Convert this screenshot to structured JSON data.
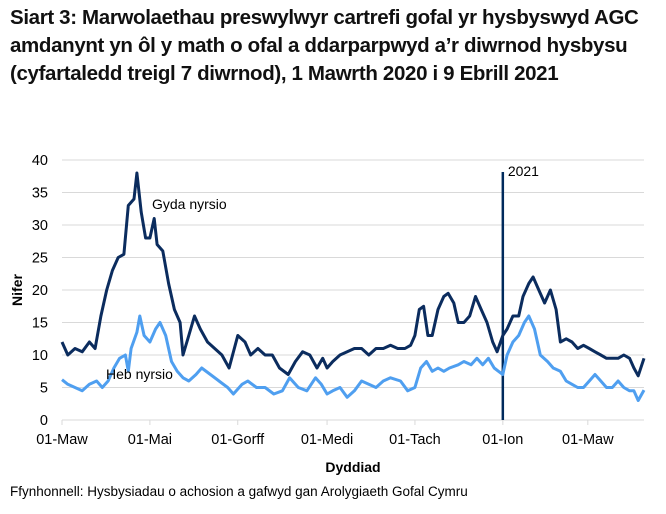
{
  "chart_data": {
    "type": "line",
    "title": "Siart 3: Marwolaethau preswylwyr cartrefi gofal yr hysbyswyd AGC amdanynt yn ôl y math o ofal a ddarparpwyd a’r diwrnod hysbysu (cyfartaledd treigl 7 diwrnod), 1 Mawrth 2020 i 9 Ebrill 2021",
    "xlabel": "Dyddiad",
    "ylabel": "Nifer",
    "ylim": [
      0,
      40
    ],
    "yticks": [
      0,
      5,
      10,
      15,
      20,
      25,
      30,
      35,
      40
    ],
    "xlim": [
      "2020-03-01",
      "2021-04-09"
    ],
    "xticks": [
      {
        "date": "2020-03-01",
        "label": "01-Maw"
      },
      {
        "date": "2020-05-01",
        "label": "01-Mai"
      },
      {
        "date": "2020-07-01",
        "label": "01-Gorff"
      },
      {
        "date": "2020-09-01",
        "label": "01-Medi"
      },
      {
        "date": "2020-11-01",
        "label": "01-Tach"
      },
      {
        "date": "2021-01-01",
        "label": "01-Ion"
      },
      {
        "date": "2021-03-01",
        "label": "01-Maw"
      }
    ],
    "grid": true,
    "annotations": [
      {
        "type": "vline",
        "date": "2021-01-01",
        "label": "2021",
        "color": "#002a5c"
      }
    ],
    "source": "Ffynhonnell: Hysbysiadau o achosion a gafwyd gan Arolygiaeth Gofal Cymru",
    "series": [
      {
        "name": "Gyda nyrsio",
        "color": "#0b2c5e",
        "points": [
          [
            "2020-03-01",
            12
          ],
          [
            "2020-03-05",
            10
          ],
          [
            "2020-03-10",
            11
          ],
          [
            "2020-03-15",
            10.5
          ],
          [
            "2020-03-20",
            12
          ],
          [
            "2020-03-24",
            11
          ],
          [
            "2020-03-28",
            16
          ],
          [
            "2020-04-01",
            20
          ],
          [
            "2020-04-05",
            23
          ],
          [
            "2020-04-09",
            25
          ],
          [
            "2020-04-13",
            25.5
          ],
          [
            "2020-04-16",
            33
          ],
          [
            "2020-04-20",
            34
          ],
          [
            "2020-04-22",
            38
          ],
          [
            "2020-04-25",
            32
          ],
          [
            "2020-04-28",
            28
          ],
          [
            "2020-05-01",
            28
          ],
          [
            "2020-05-04",
            31
          ],
          [
            "2020-05-06",
            27
          ],
          [
            "2020-05-10",
            26
          ],
          [
            "2020-05-14",
            21
          ],
          [
            "2020-05-18",
            17
          ],
          [
            "2020-05-22",
            15
          ],
          [
            "2020-05-24",
            10
          ],
          [
            "2020-05-28",
            13
          ],
          [
            "2020-06-01",
            16
          ],
          [
            "2020-06-05",
            14
          ],
          [
            "2020-06-10",
            12
          ],
          [
            "2020-06-15",
            11
          ],
          [
            "2020-06-20",
            10
          ],
          [
            "2020-06-25",
            8
          ],
          [
            "2020-07-01",
            13
          ],
          [
            "2020-07-06",
            12
          ],
          [
            "2020-07-10",
            10
          ],
          [
            "2020-07-15",
            11
          ],
          [
            "2020-07-20",
            10
          ],
          [
            "2020-07-25",
            10
          ],
          [
            "2020-07-30",
            8
          ],
          [
            "2020-08-05",
            7
          ],
          [
            "2020-08-10",
            9
          ],
          [
            "2020-08-15",
            10.5
          ],
          [
            "2020-08-20",
            10
          ],
          [
            "2020-08-25",
            8
          ],
          [
            "2020-08-29",
            9.5
          ],
          [
            "2020-09-01",
            8
          ],
          [
            "2020-09-05",
            9
          ],
          [
            "2020-09-10",
            10
          ],
          [
            "2020-09-15",
            10.5
          ],
          [
            "2020-09-20",
            11
          ],
          [
            "2020-09-25",
            11
          ],
          [
            "2020-09-30",
            10
          ],
          [
            "2020-10-05",
            11
          ],
          [
            "2020-10-10",
            11
          ],
          [
            "2020-10-15",
            11.5
          ],
          [
            "2020-10-20",
            11
          ],
          [
            "2020-10-25",
            11
          ],
          [
            "2020-10-29",
            11.5
          ],
          [
            "2020-11-01",
            13
          ],
          [
            "2020-11-04",
            17
          ],
          [
            "2020-11-07",
            17.5
          ],
          [
            "2020-11-10",
            13
          ],
          [
            "2020-11-13",
            13
          ],
          [
            "2020-11-17",
            17
          ],
          [
            "2020-11-21",
            19
          ],
          [
            "2020-11-24",
            19.5
          ],
          [
            "2020-11-28",
            18
          ],
          [
            "2020-12-01",
            15
          ],
          [
            "2020-12-05",
            15
          ],
          [
            "2020-12-09",
            16
          ],
          [
            "2020-12-13",
            19
          ],
          [
            "2020-12-17",
            17
          ],
          [
            "2020-12-21",
            15
          ],
          [
            "2020-12-25",
            12
          ],
          [
            "2020-12-28",
            10.5
          ],
          [
            "2021-01-01",
            13
          ],
          [
            "2021-01-04",
            14
          ],
          [
            "2021-01-08",
            16
          ],
          [
            "2021-01-12",
            16
          ],
          [
            "2021-01-15",
            19
          ],
          [
            "2021-01-19",
            21
          ],
          [
            "2021-01-22",
            22
          ],
          [
            "2021-01-26",
            20
          ],
          [
            "2021-01-30",
            18
          ],
          [
            "2021-02-03",
            20
          ],
          [
            "2021-02-07",
            17
          ],
          [
            "2021-02-10",
            12
          ],
          [
            "2021-02-14",
            12.5
          ],
          [
            "2021-02-18",
            12
          ],
          [
            "2021-02-22",
            11
          ],
          [
            "2021-02-26",
            11.5
          ],
          [
            "2021-03-02",
            11
          ],
          [
            "2021-03-06",
            10.5
          ],
          [
            "2021-03-10",
            10
          ],
          [
            "2021-03-14",
            9.5
          ],
          [
            "2021-03-18",
            9.5
          ],
          [
            "2021-03-22",
            9.5
          ],
          [
            "2021-03-26",
            10
          ],
          [
            "2021-03-30",
            9.5
          ],
          [
            "2021-04-02",
            8
          ],
          [
            "2021-04-05",
            6.8
          ],
          [
            "2021-04-09",
            9.5
          ]
        ]
      },
      {
        "name": "Heb nyrsio",
        "color": "#4f9ff0",
        "points": [
          [
            "2020-03-01",
            6.2
          ],
          [
            "2020-03-05",
            5.5
          ],
          [
            "2020-03-10",
            5
          ],
          [
            "2020-03-15",
            4.5
          ],
          [
            "2020-03-20",
            5.5
          ],
          [
            "2020-03-25",
            6
          ],
          [
            "2020-03-29",
            5
          ],
          [
            "2020-04-02",
            6
          ],
          [
            "2020-04-06",
            8
          ],
          [
            "2020-04-10",
            9.5
          ],
          [
            "2020-04-14",
            10
          ],
          [
            "2020-04-16",
            7.5
          ],
          [
            "2020-04-18",
            11
          ],
          [
            "2020-04-22",
            13.5
          ],
          [
            "2020-04-24",
            16
          ],
          [
            "2020-04-27",
            13
          ],
          [
            "2020-05-01",
            12
          ],
          [
            "2020-05-05",
            14
          ],
          [
            "2020-05-08",
            15
          ],
          [
            "2020-05-12",
            13
          ],
          [
            "2020-05-16",
            9
          ],
          [
            "2020-05-20",
            7.5
          ],
          [
            "2020-05-24",
            6.5
          ],
          [
            "2020-05-28",
            6
          ],
          [
            "2020-06-02",
            7
          ],
          [
            "2020-06-06",
            8
          ],
          [
            "2020-06-12",
            7
          ],
          [
            "2020-06-18",
            6
          ],
          [
            "2020-06-24",
            5
          ],
          [
            "2020-06-28",
            4
          ],
          [
            "2020-07-04",
            5.5
          ],
          [
            "2020-07-08",
            6
          ],
          [
            "2020-07-14",
            5
          ],
          [
            "2020-07-20",
            5
          ],
          [
            "2020-07-26",
            4
          ],
          [
            "2020-08-01",
            4.5
          ],
          [
            "2020-08-06",
            6.5
          ],
          [
            "2020-08-12",
            5
          ],
          [
            "2020-08-18",
            4.5
          ],
          [
            "2020-08-24",
            6.5
          ],
          [
            "2020-08-28",
            5.5
          ],
          [
            "2020-09-01",
            4
          ],
          [
            "2020-09-05",
            4.5
          ],
          [
            "2020-09-10",
            5
          ],
          [
            "2020-09-15",
            3.5
          ],
          [
            "2020-09-20",
            4.5
          ],
          [
            "2020-09-25",
            6
          ],
          [
            "2020-09-30",
            5.5
          ],
          [
            "2020-10-05",
            5
          ],
          [
            "2020-10-10",
            6
          ],
          [
            "2020-10-15",
            6.5
          ],
          [
            "2020-10-22",
            6
          ],
          [
            "2020-10-27",
            4.5
          ],
          [
            "2020-11-01",
            5
          ],
          [
            "2020-11-05",
            8
          ],
          [
            "2020-11-09",
            9
          ],
          [
            "2020-11-13",
            7.5
          ],
          [
            "2020-11-17",
            8
          ],
          [
            "2020-11-21",
            7.5
          ],
          [
            "2020-11-25",
            8
          ],
          [
            "2020-12-01",
            8.5
          ],
          [
            "2020-12-05",
            9
          ],
          [
            "2020-12-10",
            8.5
          ],
          [
            "2020-12-14",
            9.5
          ],
          [
            "2020-12-18",
            8.5
          ],
          [
            "2020-12-22",
            9.5
          ],
          [
            "2020-12-26",
            8
          ],
          [
            "2020-12-29",
            7.5
          ],
          [
            "2021-01-01",
            7
          ],
          [
            "2021-01-04",
            10
          ],
          [
            "2021-01-08",
            12
          ],
          [
            "2021-01-12",
            13
          ],
          [
            "2021-01-16",
            15
          ],
          [
            "2021-01-19",
            16
          ],
          [
            "2021-01-23",
            14
          ],
          [
            "2021-01-27",
            10
          ],
          [
            "2021-02-01",
            9
          ],
          [
            "2021-02-05",
            8
          ],
          [
            "2021-02-10",
            7.5
          ],
          [
            "2021-02-14",
            6
          ],
          [
            "2021-02-18",
            5.5
          ],
          [
            "2021-02-22",
            5
          ],
          [
            "2021-02-26",
            5
          ],
          [
            "2021-03-02",
            6
          ],
          [
            "2021-03-06",
            7
          ],
          [
            "2021-03-10",
            6
          ],
          [
            "2021-03-14",
            5
          ],
          [
            "2021-03-18",
            5
          ],
          [
            "2021-03-22",
            6
          ],
          [
            "2021-03-26",
            5
          ],
          [
            "2021-03-30",
            4.5
          ],
          [
            "2021-04-02",
            4.5
          ],
          [
            "2021-04-05",
            3
          ],
          [
            "2021-04-09",
            4.6
          ]
        ]
      }
    ]
  }
}
